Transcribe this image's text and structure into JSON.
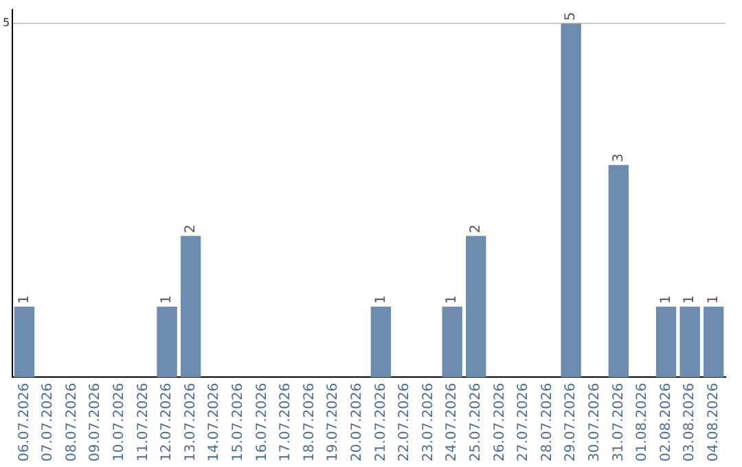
{
  "chart_data": {
    "type": "bar",
    "categories": [
      "06.07.2026",
      "07.07.2026",
      "08.07.2026",
      "09.07.2026",
      "10.07.2026",
      "11.07.2026",
      "12.07.2026",
      "13.07.2026",
      "14.07.2026",
      "15.07.2026",
      "16.07.2026",
      "17.07.2026",
      "18.07.2026",
      "19.07.2026",
      "20.07.2026",
      "21.07.2026",
      "22.07.2026",
      "23.07.2026",
      "24.07.2026",
      "25.07.2026",
      "26.07.2026",
      "27.07.2026",
      "28.07.2026",
      "29.07.2026",
      "30.07.2026",
      "31.07.2026",
      "01.08.2026",
      "02.08.2026",
      "03.08.2026",
      "04.08.2026"
    ],
    "values": [
      1,
      0,
      0,
      0,
      0,
      0,
      1,
      2,
      0,
      0,
      0,
      0,
      0,
      0,
      0,
      1,
      0,
      0,
      1,
      2,
      0,
      0,
      0,
      5,
      0,
      3,
      0,
      1,
      1,
      1
    ],
    "value_labels": [
      "1",
      null,
      null,
      null,
      null,
      null,
      "1",
      "2",
      null,
      null,
      null,
      null,
      null,
      null,
      null,
      "1",
      null,
      null,
      "1",
      "2",
      null,
      null,
      null,
      "5",
      null,
      "3",
      null,
      "1",
      "1",
      "1"
    ],
    "color": "#6b8cae",
    "ylim": [
      0,
      5.2
    ],
    "yticks": [
      5
    ],
    "grid": "y",
    "legend": false
  }
}
